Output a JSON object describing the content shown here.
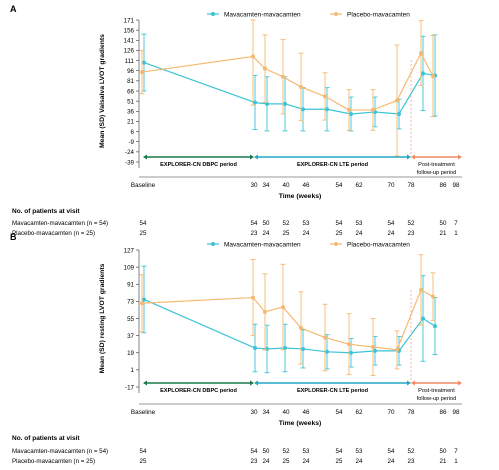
{
  "chart_data": [
    {
      "panel": "A",
      "type": "line",
      "ylabel": "Mean (SD) Valsalva LVOT gradients",
      "xlabel": "Time (weeks)",
      "ylim": [
        -39,
        171
      ],
      "yticks": [
        171,
        156,
        141,
        126,
        111,
        96,
        81,
        66,
        51,
        36,
        21,
        6,
        -9,
        -24,
        -39
      ],
      "xticks": [
        "Baseline",
        "30",
        "34",
        "40",
        "46",
        "54",
        "62",
        "70",
        "78",
        "86",
        "98"
      ],
      "tick_weeks": [
        0,
        30,
        34,
        40,
        46,
        54,
        62,
        70,
        78,
        86,
        98
      ],
      "grid": false,
      "legend_position": "top",
      "series": [
        {
          "name": "Mavacamten-mavacamten",
          "color": "#3cc3d5",
          "x": [
            0,
            30,
            34,
            40,
            46,
            54,
            62,
            70,
            78,
            86,
            90
          ],
          "y": [
            108,
            49,
            47,
            47,
            39,
            39,
            32,
            35,
            32,
            92,
            89
          ],
          "sd": [
            42,
            40,
            40,
            40,
            32,
            32,
            25,
            22,
            22,
            55,
            60
          ]
        },
        {
          "name": "Placebo-mavacamten",
          "color": "#f5b971",
          "x": [
            0,
            30,
            34,
            40,
            46,
            54,
            62,
            70,
            78,
            86,
            90
          ],
          "y": [
            94,
            117,
            99,
            87,
            72,
            58,
            38,
            38,
            52,
            122,
            88
          ],
          "sd": [
            32,
            72,
            50,
            55,
            50,
            35,
            30,
            30,
            82,
            48,
            60
          ]
        }
      ],
      "periods": [
        {
          "label": "EXPLORER-CN DBPC period",
          "color": "#1a7a4c"
        },
        {
          "label": "EXPLORER-CN LTE period",
          "color": "#25a6c7"
        },
        {
          "label": "Post-treatment follow-up period",
          "color": "#f08a65"
        }
      ],
      "patients": {
        "title": "No. of patients at visit",
        "rows": [
          {
            "label": "Mavacamten-mavacamten (n = 54)",
            "values": [
              "54",
              "54",
              "50",
              "52",
              "53",
              "54",
              "53",
              "54",
              "52",
              "50",
              "7"
            ]
          },
          {
            "label": "Placebo-mavacamten (n = 25)",
            "values": [
              "25",
              "23",
              "24",
              "25",
              "24",
              "25",
              "24",
              "24",
              "23",
              "21",
              "1"
            ]
          }
        ]
      }
    },
    {
      "panel": "B",
      "type": "line",
      "ylabel": "Mean (SD) resting LVOT gradients",
      "xlabel": "Time (weeks)",
      "ylim": [
        -17,
        127
      ],
      "yticks": [
        127,
        109,
        91,
        73,
        55,
        37,
        19,
        1,
        -17
      ],
      "xticks": [
        "Baseline",
        "30",
        "34",
        "40",
        "46",
        "54",
        "62",
        "70",
        "78",
        "86",
        "98"
      ],
      "tick_weeks": [
        0,
        30,
        34,
        40,
        46,
        54,
        62,
        70,
        78,
        86,
        98
      ],
      "grid": false,
      "legend_position": "top",
      "series": [
        {
          "name": "Mavacamten-mavacamten",
          "color": "#3cc3d5",
          "x": [
            0,
            30,
            34,
            40,
            46,
            54,
            62,
            70,
            78,
            86,
            90
          ],
          "y": [
            75,
            24,
            23,
            24,
            23,
            20,
            19,
            21,
            21,
            55,
            47
          ],
          "sd": [
            35,
            25,
            25,
            25,
            20,
            18,
            15,
            15,
            15,
            45,
            30
          ]
        },
        {
          "name": "Placebo-mavacamten",
          "color": "#f5b971",
          "x": [
            0,
            30,
            34,
            40,
            46,
            54,
            62,
            70,
            78,
            86,
            90
          ],
          "y": [
            71,
            77,
            62,
            67,
            45,
            35,
            28,
            25,
            22,
            85,
            78
          ],
          "sd": [
            30,
            40,
            40,
            45,
            38,
            35,
            32,
            30,
            20,
            37,
            25
          ]
        }
      ],
      "periods": [
        {
          "label": "EXPLORER-CN DBPC period",
          "color": "#1a7a4c"
        },
        {
          "label": "EXPLORER-CN LTE period",
          "color": "#25a6c7"
        },
        {
          "label": "Post-treatment follow-up period",
          "color": "#f08a65"
        }
      ],
      "patients": {
        "title": "No. of patients at visit",
        "rows": [
          {
            "label": "Mavacamten-mavacamten (n = 54)",
            "values": [
              "54",
              "54",
              "50",
              "52",
              "53",
              "54",
              "53",
              "54",
              "52",
              "50",
              "7"
            ]
          },
          {
            "label": "Placebo-mavacamten (n = 25)",
            "values": [
              "25",
              "23",
              "24",
              "25",
              "24",
              "25",
              "24",
              "24",
              "23",
              "21",
              "1"
            ]
          }
        ]
      }
    }
  ]
}
